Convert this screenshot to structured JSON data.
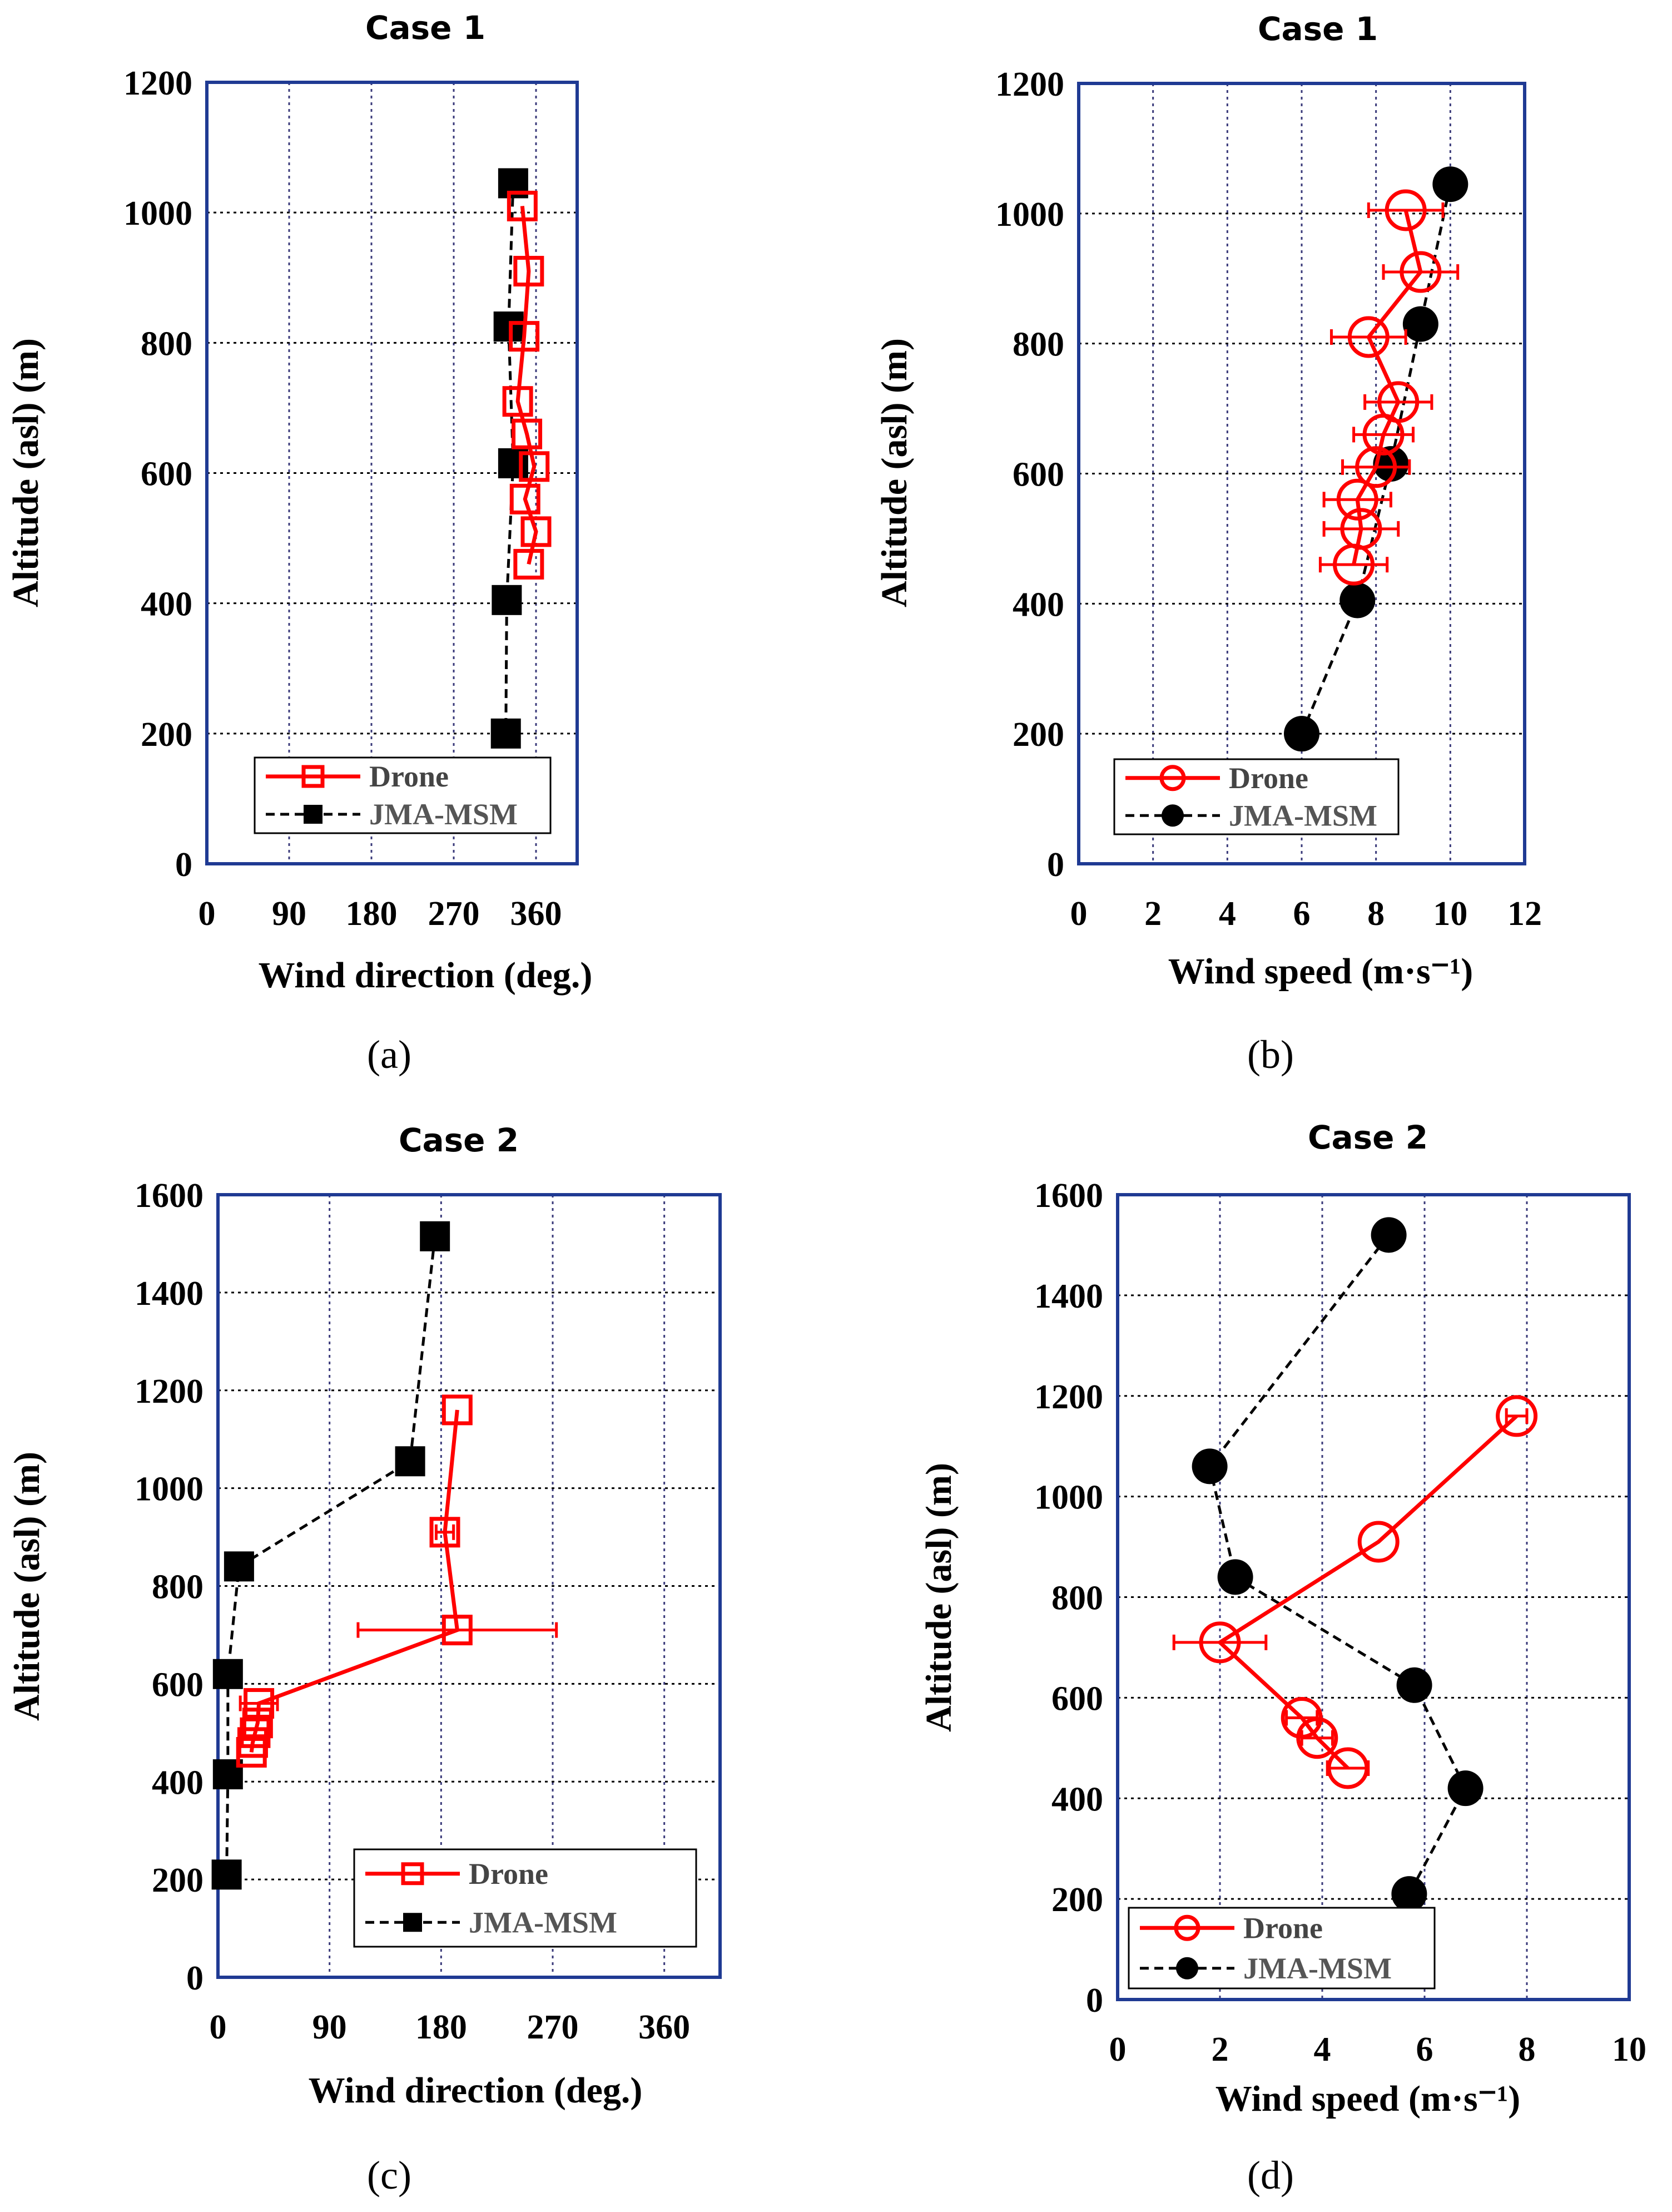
{
  "colors": {
    "drone": "#ff0000",
    "msm": "#000000",
    "frame": "#1f3a93",
    "grid": "#3a3a7a"
  },
  "chart_data": [
    {
      "type": "line",
      "panel_label": "(a)",
      "title": "Case 1",
      "xlabel": "Wind direction (deg.)",
      "ylabel": "Altitude (asl) (m)",
      "xlim": [
        0,
        405
      ],
      "ylim": [
        0,
        1200
      ],
      "xticks": [
        0,
        90,
        180,
        270,
        360
      ],
      "xtick_labels": [
        "0",
        "90",
        "180",
        "270",
        "360"
      ],
      "yticks": [
        0,
        200,
        400,
        600,
        800,
        1000,
        1200
      ],
      "ytick_labels": [
        "0",
        "200",
        "400",
        "600",
        "800",
        "1000",
        "1200"
      ],
      "legend": [
        "Drone",
        "JMA-MSM"
      ],
      "series": [
        {
          "name": "Drone",
          "marker": "square-open",
          "x": [
            345,
            352,
            347,
            340,
            350,
            358,
            348,
            360,
            352
          ],
          "y": [
            1010,
            910,
            810,
            710,
            660,
            610,
            560,
            510,
            460
          ],
          "xerr": [
            0,
            0,
            0,
            0,
            0,
            0,
            0,
            0,
            0
          ]
        },
        {
          "name": "JMA-MSM",
          "marker": "square-filled",
          "x": [
            335,
            330,
            335,
            328,
            327
          ],
          "y": [
            1045,
            825,
            615,
            405,
            200
          ]
        }
      ]
    },
    {
      "type": "line",
      "panel_label": "(b)",
      "title": "Case 1",
      "xlabel": "Wind speed (m·s⁻¹)",
      "ylabel": "Altitude (asl) (m)",
      "xlim": [
        0,
        12
      ],
      "ylim": [
        0,
        1200
      ],
      "xticks": [
        0,
        2,
        4,
        6,
        8,
        10,
        12
      ],
      "xtick_labels": [
        "0",
        "2",
        "4",
        "6",
        "8",
        "10",
        "12"
      ],
      "yticks": [
        0,
        200,
        400,
        600,
        800,
        1000,
        1200
      ],
      "ytick_labels": [
        "0",
        "200",
        "400",
        "600",
        "800",
        "1000",
        "1200"
      ],
      "legend": [
        "Drone",
        "JMA-MSM"
      ],
      "series": [
        {
          "name": "Drone",
          "marker": "circle-open",
          "x": [
            8.8,
            9.2,
            7.8,
            8.6,
            8.2,
            8.0,
            7.5,
            7.6,
            7.4
          ],
          "y": [
            1005,
            910,
            810,
            710,
            660,
            610,
            560,
            515,
            460
          ],
          "xerr": [
            1.0,
            1.0,
            1.0,
            0.9,
            0.8,
            0.9,
            0.9,
            1.0,
            0.9
          ]
        },
        {
          "name": "JMA-MSM",
          "marker": "circle-filled",
          "x": [
            10.0,
            9.2,
            8.4,
            7.5,
            6.0
          ],
          "y": [
            1045,
            830,
            615,
            405,
            200
          ]
        }
      ]
    },
    {
      "type": "line",
      "panel_label": "(c)",
      "title": "Case 2",
      "xlabel": "Wind direction (deg.)",
      "ylabel": "Altitude (asl) (m)",
      "xlim": [
        0,
        405
      ],
      "ylim": [
        0,
        1600
      ],
      "xticks": [
        0,
        90,
        180,
        270,
        360
      ],
      "xtick_labels": [
        "0",
        "90",
        "180",
        "270",
        "360"
      ],
      "yticks": [
        0,
        200,
        400,
        600,
        800,
        1000,
        1200,
        1400,
        1600
      ],
      "ytick_labels": [
        "0",
        "200",
        "400",
        "600",
        "800",
        "1000",
        "1200",
        "1400",
        "1600"
      ],
      "legend": [
        "Drone",
        "JMA-MSM"
      ],
      "series": [
        {
          "name": "Drone",
          "marker": "square-open",
          "x": [
            193,
            183,
            193,
            33,
            32,
            30,
            28,
            27
          ],
          "y": [
            1160,
            910,
            710,
            560,
            520,
            500,
            480,
            460
          ],
          "xerr": [
            0,
            7,
            80,
            15,
            0,
            0,
            0,
            0
          ]
        },
        {
          "name": "JMA-MSM",
          "marker": "square-filled",
          "x": [
            175,
            155,
            17,
            8,
            8,
            7
          ],
          "y": [
            1515,
            1055,
            840,
            620,
            415,
            210
          ]
        }
      ]
    },
    {
      "type": "line",
      "panel_label": "(d)",
      "title": "Case 2",
      "xlabel": "Wind speed (m·s⁻¹)",
      "ylabel": "Altitude (asl) (m)",
      "xlim": [
        0,
        10
      ],
      "ylim": [
        0,
        1600
      ],
      "xticks": [
        0,
        2,
        4,
        6,
        8,
        10
      ],
      "xtick_labels": [
        "0",
        "2",
        "4",
        "6",
        "8",
        "10"
      ],
      "yticks": [
        0,
        200,
        400,
        600,
        800,
        1000,
        1200,
        1400,
        1600
      ],
      "ytick_labels": [
        "0",
        "200",
        "400",
        "600",
        "800",
        "1000",
        "1200",
        "1400",
        "1600"
      ],
      "legend": [
        "Drone",
        "JMA-MSM"
      ],
      "series": [
        {
          "name": "Drone",
          "marker": "circle-open",
          "x": [
            7.8,
            5.1,
            2.0,
            3.6,
            3.9,
            4.5
          ],
          "y": [
            1160,
            910,
            710,
            560,
            520,
            460
          ],
          "xerr": [
            0.2,
            0,
            0.9,
            0.3,
            0.3,
            0.4
          ]
        },
        {
          "name": "JMA-MSM",
          "marker": "circle-filled",
          "x": [
            5.3,
            1.8,
            2.3,
            5.8,
            6.8,
            5.7
          ],
          "y": [
            1520,
            1060,
            840,
            625,
            420,
            210
          ]
        }
      ]
    }
  ]
}
